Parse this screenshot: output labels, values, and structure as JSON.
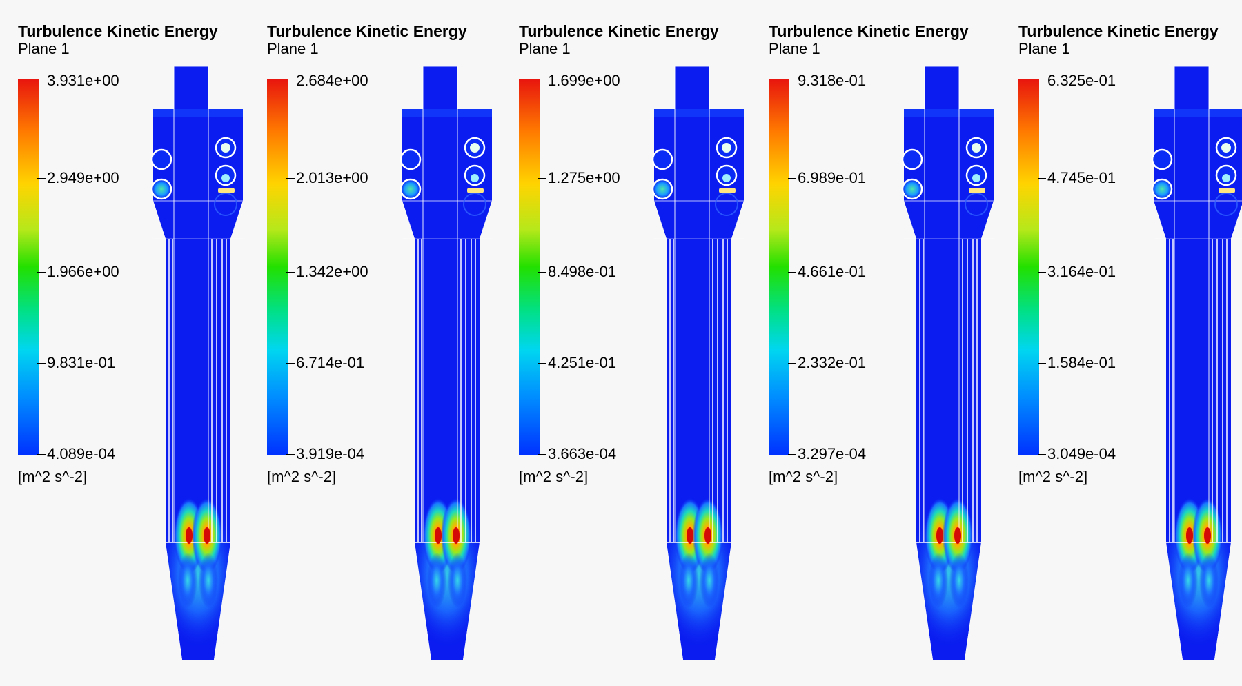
{
  "panels": [
    {
      "title": "Turbulence Kinetic Energy",
      "subtitle": "Plane 1",
      "unit": "[m^2 s^-2]",
      "ticks": [
        "3.931e+00",
        "2.949e+00",
        "1.966e+00",
        "9.831e-01",
        "4.089e-04"
      ]
    },
    {
      "title": "Turbulence Kinetic Energy",
      "subtitle": "Plane 1",
      "unit": "[m^2 s^-2]",
      "ticks": [
        "2.684e+00",
        "2.013e+00",
        "1.342e+00",
        "6.714e-01",
        "3.919e-04"
      ]
    },
    {
      "title": "Turbulence Kinetic Energy",
      "subtitle": "Plane 1",
      "unit": "[m^2 s^-2]",
      "ticks": [
        "1.699e+00",
        "1.275e+00",
        "8.498e-01",
        "4.251e-01",
        "3.663e-04"
      ]
    },
    {
      "title": "Turbulence Kinetic Energy",
      "subtitle": "Plane 1",
      "unit": "[m^2 s^-2]",
      "ticks": [
        "9.318e-01",
        "6.989e-01",
        "4.661e-01",
        "2.332e-01",
        "3.297e-04"
      ]
    },
    {
      "title": "Turbulence Kinetic Energy",
      "subtitle": "Plane 1",
      "unit": "[m^2 s^-2]",
      "ticks": [
        "6.325e-01",
        "4.745e-01",
        "3.164e-01",
        "1.584e-01",
        "3.049e-04"
      ]
    }
  ],
  "colors": {
    "field_low": "#0a1cf0",
    "field_high": "#e81a0c",
    "background": "#f7f7f7"
  }
}
